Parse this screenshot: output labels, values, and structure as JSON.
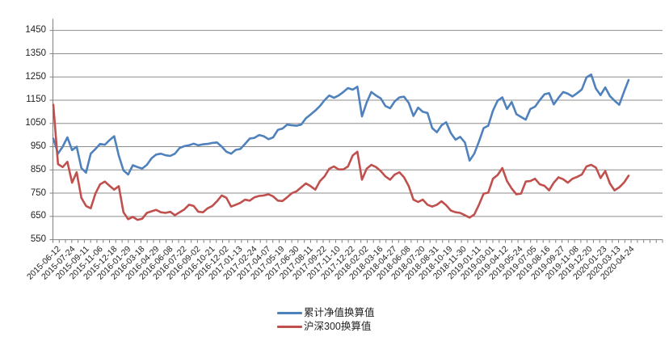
{
  "chart_data": {
    "type": "line",
    "title": "",
    "xlabel": "",
    "ylabel": "",
    "ylim": [
      550,
      1500
    ],
    "y_major_unit": 100,
    "grid": "horizontal-only",
    "legend_position": "bottom-center",
    "colors": {
      "axis": "#808080",
      "gridline": "#8c8c8c",
      "tick": "#808080",
      "text": "#1f1f1f",
      "series_blue": "#4F81BD",
      "series_red": "#C0504D",
      "background": "#ffffff"
    },
    "y_tick_labels": [
      "550",
      "650",
      "750",
      "850",
      "950",
      "1050",
      "1150",
      "1250",
      "1350",
      "1450"
    ],
    "x_tick_labels": [
      "2015-06-12",
      "2015-07-24",
      "2015-09-11",
      "2015-11-06",
      "2015-12-18",
      "2016-01-29",
      "2016-03-18",
      "2016-04-29",
      "2016-06-08",
      "2016-07-22",
      "2016-09-02",
      "2016-10-21",
      "2016-12-02",
      "2017-01-13",
      "2017-02-24",
      "2017-04-07",
      "2017-05-19",
      "2017-06-30",
      "2017-08-11",
      "2017-09-22",
      "2017-11-10",
      "2017-12-22",
      "2018-02-02",
      "2018-03-16",
      "2018-04-27",
      "2018-06-08",
      "2018-07-20",
      "2018-08-31",
      "2018-10-19",
      "2018-11-30",
      "2019-01-11",
      "2019-03-01",
      "2019-04-12",
      "2019-05-24",
      "2019-07-05",
      "2019-08-16",
      "2019-09-27",
      "2019-11-08",
      "2019-12-20",
      "2020-01-23",
      "2020-03-13",
      "2020-04-24"
    ],
    "series": [
      {
        "name": "累计净值换算值",
        "color": "#4F81BD",
        "values": [
          985,
          920,
          950,
          990,
          935,
          950,
          858,
          838,
          920,
          940,
          962,
          958,
          978,
          995,
          912,
          848,
          830,
          870,
          862,
          856,
          872,
          900,
          916,
          920,
          913,
          910,
          920,
          944,
          952,
          956,
          963,
          956,
          960,
          962,
          966,
          968,
          950,
          928,
          920,
          936,
          940,
          962,
          985,
          988,
          1000,
          995,
          982,
          990,
          1022,
          1028,
          1045,
          1042,
          1040,
          1045,
          1072,
          1088,
          1105,
          1125,
          1150,
          1170,
          1160,
          1170,
          1185,
          1202,
          1195,
          1208,
          1080,
          1140,
          1185,
          1170,
          1158,
          1125,
          1115,
          1145,
          1162,
          1165,
          1138,
          1082,
          1118,
          1100,
          1095,
          1030,
          1012,
          1042,
          1055,
          1008,
          980,
          992,
          968,
          890,
          920,
          972,
          1030,
          1040,
          1105,
          1148,
          1162,
          1112,
          1142,
          1090,
          1078,
          1066,
          1112,
          1122,
          1150,
          1175,
          1180,
          1132,
          1160,
          1185,
          1178,
          1166,
          1180,
          1196,
          1248,
          1260,
          1200,
          1172,
          1205,
          1168,
          1148,
          1130,
          1185,
          1237
        ]
      },
      {
        "name": "沪深300换算值",
        "color": "#C0504D",
        "values": [
          1130,
          875,
          862,
          885,
          795,
          840,
          730,
          695,
          685,
          748,
          788,
          800,
          782,
          765,
          780,
          668,
          638,
          648,
          635,
          640,
          665,
          672,
          678,
          668,
          665,
          670,
          655,
          668,
          680,
          700,
          695,
          670,
          668,
          685,
          695,
          715,
          740,
          730,
          692,
          700,
          708,
          722,
          718,
          732,
          738,
          740,
          745,
          736,
          718,
          716,
          732,
          750,
          758,
          775,
          792,
          780,
          765,
          802,
          822,
          855,
          865,
          852,
          852,
          865,
          912,
          928,
          808,
          855,
          872,
          862,
          845,
          822,
          808,
          830,
          840,
          818,
          780,
          722,
          712,
          722,
          700,
          692,
          700,
          715,
          698,
          675,
          668,
          665,
          655,
          645,
          658,
          700,
          748,
          752,
          812,
          828,
          858,
          802,
          770,
          745,
          748,
          800,
          802,
          812,
          788,
          782,
          762,
          795,
          818,
          810,
          795,
          812,
          820,
          830,
          865,
          872,
          860,
          815,
          845,
          792,
          762,
          775,
          795,
          825
        ]
      }
    ]
  }
}
